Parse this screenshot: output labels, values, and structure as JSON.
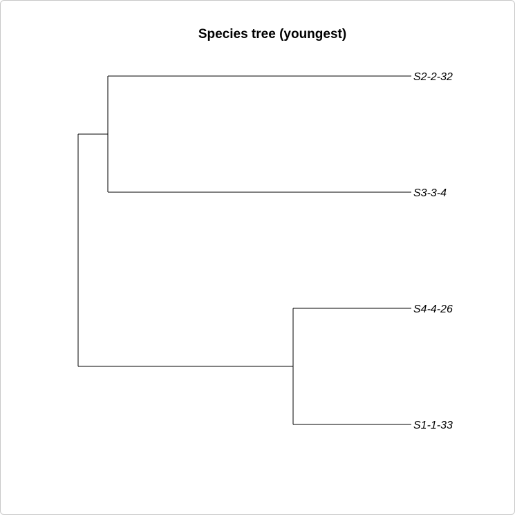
{
  "title": "Species tree (youngest)",
  "tree": {
    "type": "rectangular-phylogram",
    "line_color": "#000000",
    "tips": [
      {
        "label": "S2-2-32"
      },
      {
        "label": "S3-3-4"
      },
      {
        "label": "S4-4-26"
      },
      {
        "label": "S1-1-33"
      }
    ],
    "clades": [
      [
        "S2-2-32",
        "S3-3-4"
      ],
      [
        "S4-4-26",
        "S1-1-33"
      ]
    ]
  }
}
